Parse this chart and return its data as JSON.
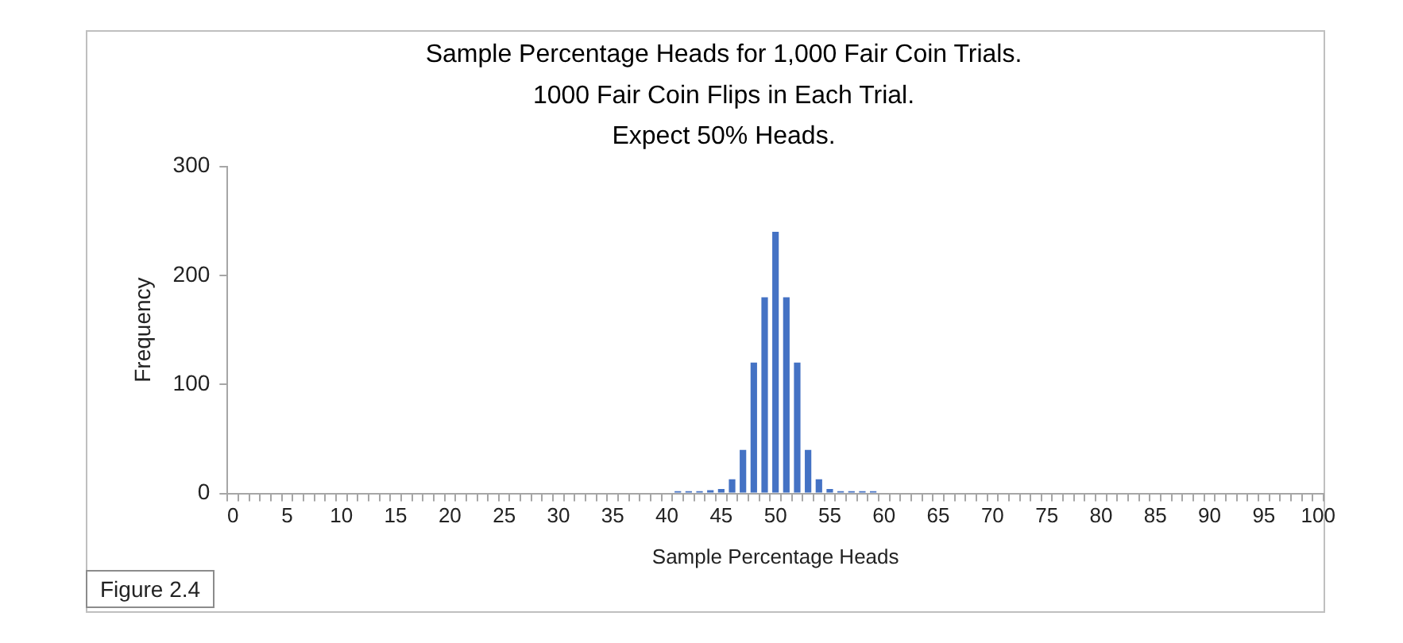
{
  "chart_data": {
    "type": "bar",
    "title": "Sample Percentage Heads for 1,000 Fair Coin Trials.\n1000 Fair Coin Flips in Each Trial.\nExpect 50% Heads.",
    "xlabel": "Sample Percentage Heads",
    "ylabel": "Frequency",
    "categories": [
      "0",
      null,
      null,
      null,
      null,
      "5",
      null,
      null,
      null,
      null,
      "10",
      null,
      null,
      null,
      null,
      "15",
      null,
      null,
      null,
      null,
      "20",
      null,
      null,
      null,
      null,
      "25",
      null,
      null,
      null,
      null,
      "30",
      null,
      null,
      null,
      null,
      "35",
      null,
      null,
      null,
      null,
      "40",
      null,
      null,
      null,
      null,
      "45",
      null,
      null,
      null,
      null,
      "50",
      null,
      null,
      null,
      null,
      "55",
      null,
      null,
      null,
      null,
      "60",
      null,
      null,
      null,
      null,
      "65",
      null,
      null,
      null,
      null,
      "70",
      null,
      null,
      null,
      null,
      "75",
      null,
      null,
      null,
      null,
      "80",
      null,
      null,
      null,
      null,
      "85",
      null,
      null,
      null,
      null,
      "90",
      null,
      null,
      null,
      null,
      "95",
      null,
      null,
      null,
      null,
      "100"
    ],
    "values": [
      0,
      0,
      0,
      0,
      0,
      0,
      0,
      0,
      0,
      0,
      0,
      0,
      0,
      0,
      0,
      0,
      0,
      0,
      0,
      0,
      0,
      0,
      0,
      0,
      0,
      0,
      0,
      0,
      0,
      0,
      0,
      0,
      0,
      0,
      0,
      0,
      0,
      0,
      0,
      0,
      0,
      2,
      2,
      2,
      3,
      4,
      13,
      40,
      120,
      180,
      240,
      180,
      120,
      40,
      13,
      4,
      2,
      2,
      2,
      2,
      0,
      0,
      0,
      0,
      0,
      0,
      0,
      0,
      0,
      0,
      0,
      0,
      0,
      0,
      0,
      0,
      0,
      0,
      0,
      0,
      0,
      0,
      0,
      0,
      0,
      0,
      0,
      0,
      0,
      0,
      0,
      0,
      0,
      0,
      0,
      0,
      0,
      0,
      0,
      0,
      0
    ],
    "color": "#4472c4",
    "ylim": [
      0,
      300
    ],
    "yticks": [
      0,
      100,
      200,
      300
    ],
    "grid": false,
    "legend": false,
    "annotations": [
      "Figure 2.4"
    ]
  }
}
